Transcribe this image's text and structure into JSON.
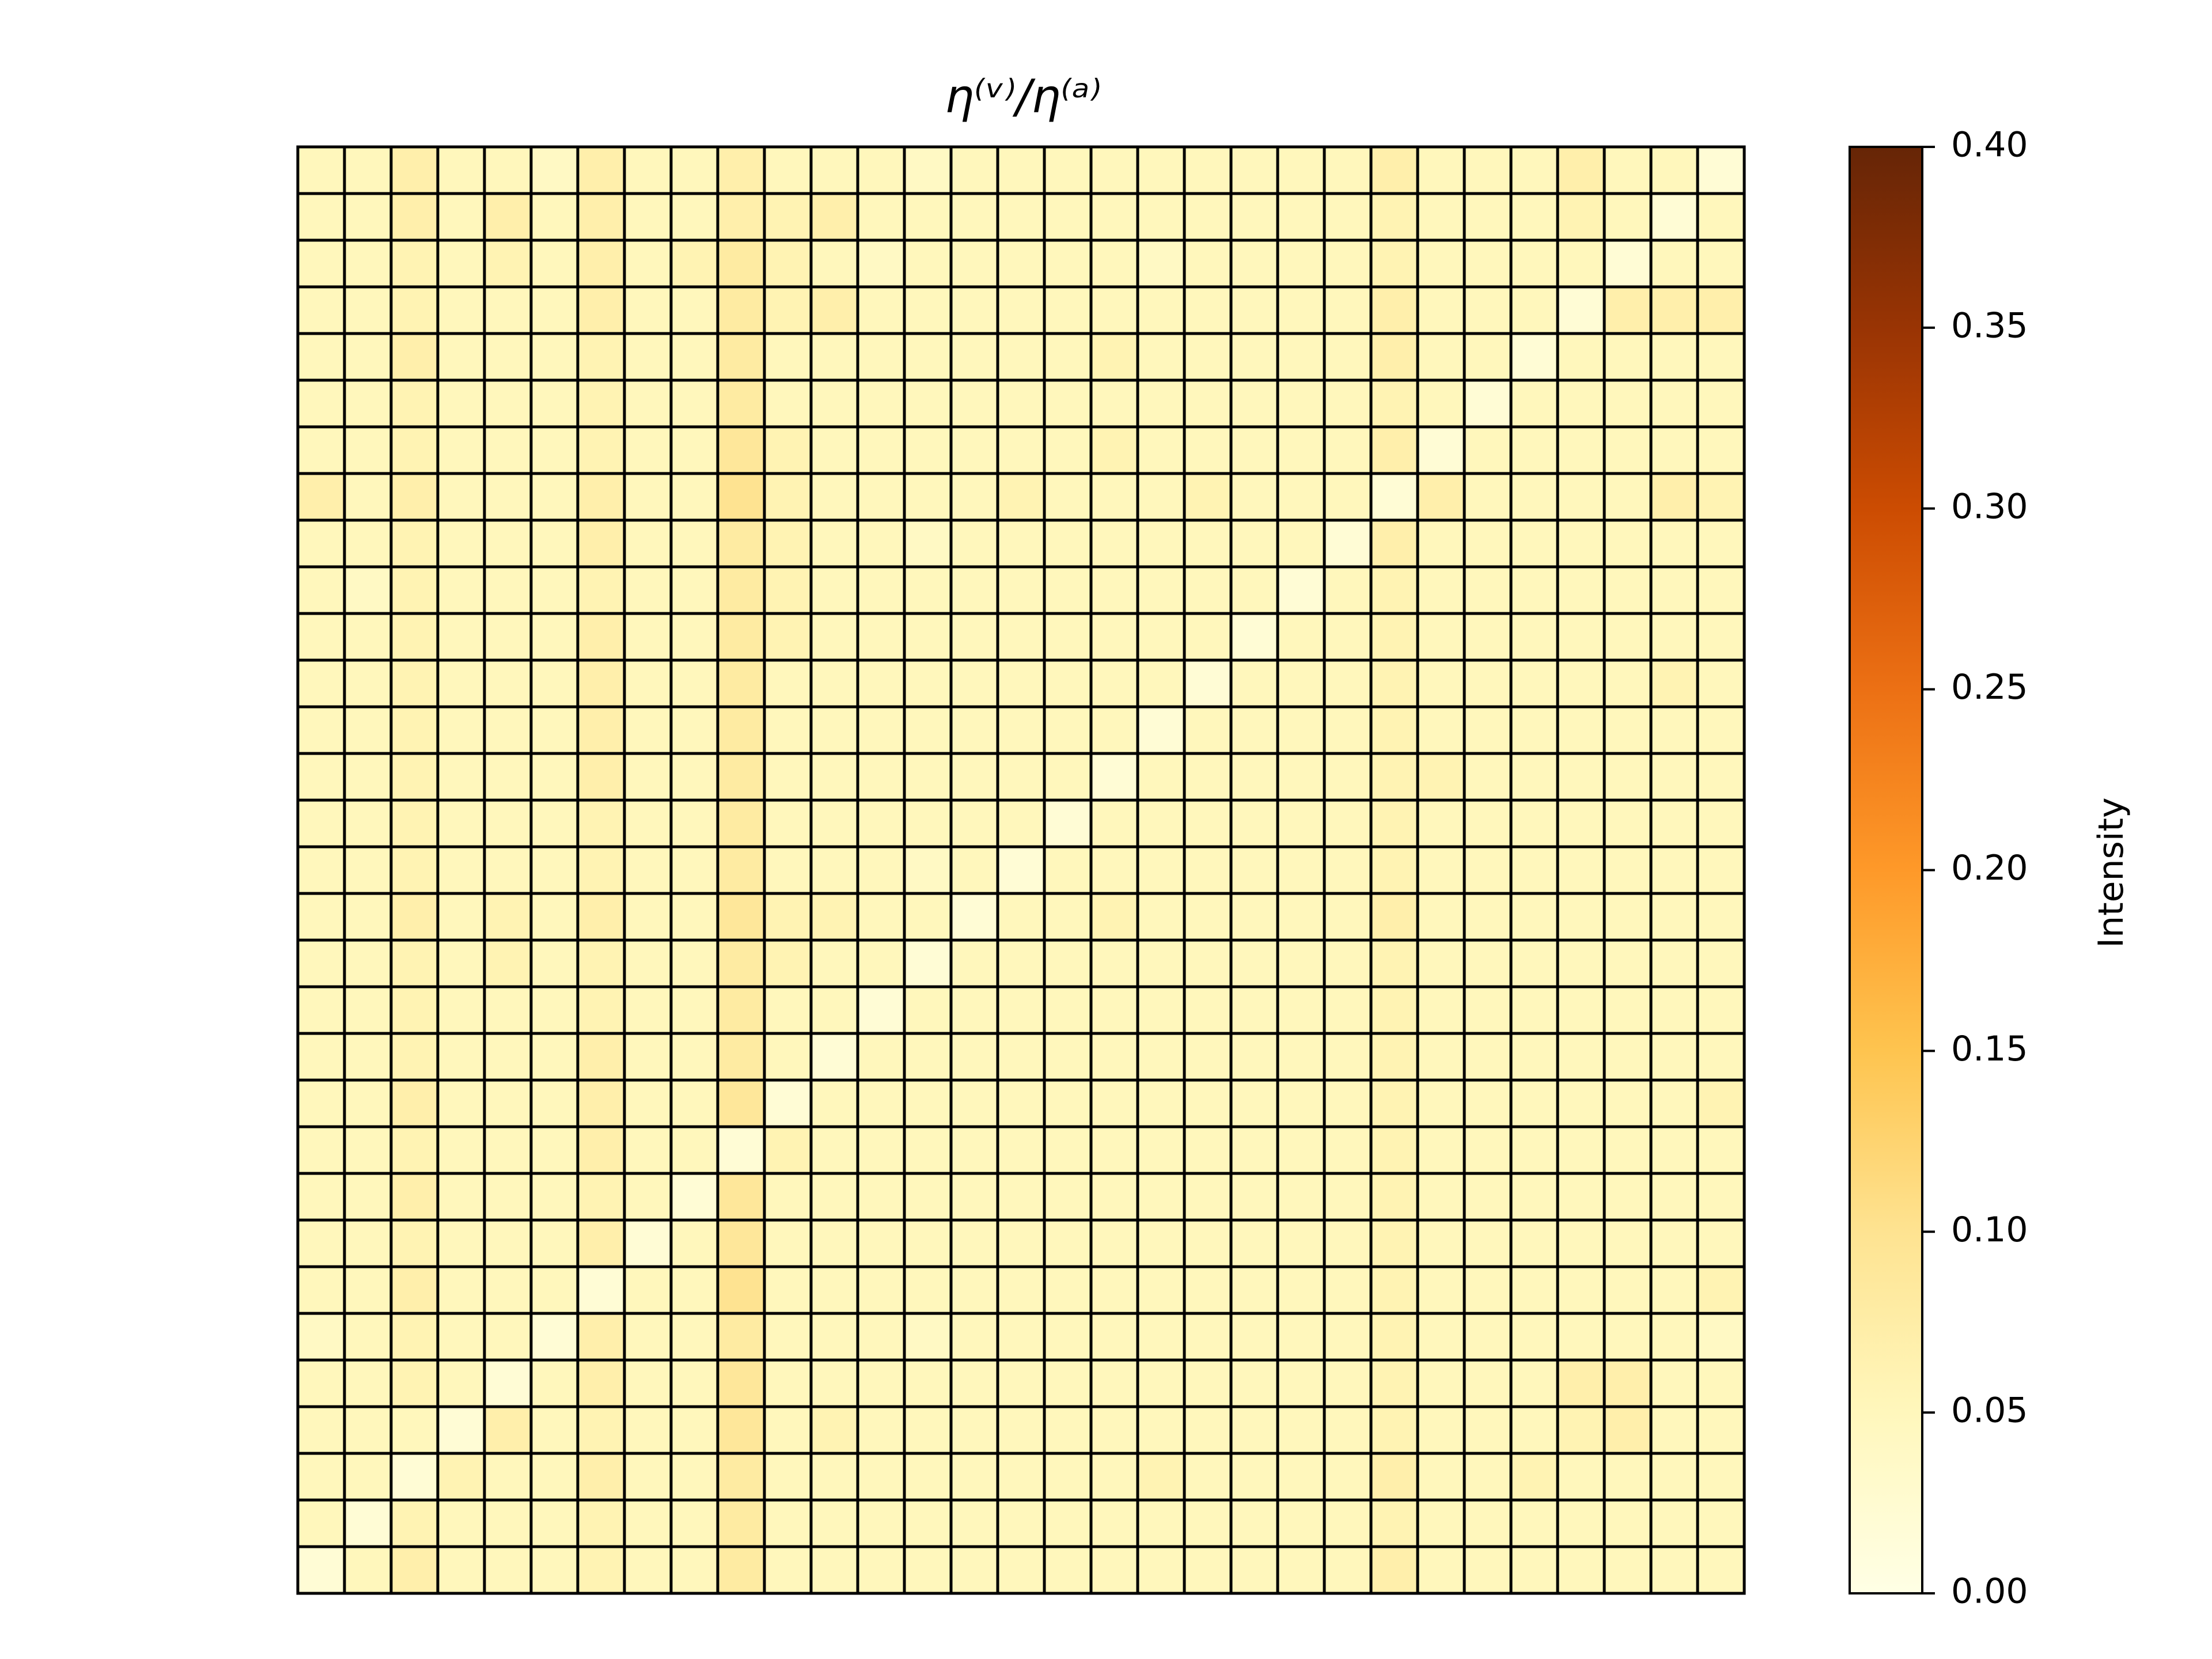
{
  "chart_data": {
    "type": "heatmap",
    "title": "η⁽ᵛ⁾/η⁽ᵃ⁾",
    "colorbar_label": "Intensity",
    "colormap": [
      "#ffffe5",
      "#fff7bc",
      "#fee391",
      "#fec44f",
      "#fe9929",
      "#ec7014",
      "#cc4c02",
      "#993404",
      "#662506"
    ],
    "clim": [
      0,
      0.4
    ],
    "cticks": [
      {
        "value": 0,
        "label": "0.00"
      },
      {
        "value": 0.05,
        "label": "0.05"
      },
      {
        "value": 0.1,
        "label": "0.10"
      },
      {
        "value": 0.15,
        "label": "0.15"
      },
      {
        "value": 0.2,
        "label": "0.20"
      },
      {
        "value": 0.25,
        "label": "0.25"
      },
      {
        "value": 0.3,
        "label": "0.30"
      },
      {
        "value": 0.35,
        "label": "0.35"
      },
      {
        "value": 0.4,
        "label": "0.40"
      }
    ],
    "values": [
      [
        0.05,
        0.05,
        0.07,
        0.05,
        0.05,
        0.04,
        0.07,
        0.05,
        0.05,
        0.07,
        0.05,
        0.05,
        0.05,
        0.04,
        0.05,
        0.05,
        0.05,
        0.05,
        0.05,
        0.05,
        0.05,
        0.05,
        0.05,
        0.07,
        0.05,
        0.05,
        0.05,
        0.07,
        0.05,
        0.05,
        0.02
      ],
      [
        0.05,
        0.05,
        0.07,
        0.05,
        0.07,
        0.05,
        0.07,
        0.05,
        0.05,
        0.07,
        0.06,
        0.07,
        0.05,
        0.05,
        0.05,
        0.05,
        0.05,
        0.05,
        0.05,
        0.05,
        0.05,
        0.05,
        0.05,
        0.06,
        0.05,
        0.05,
        0.05,
        0.06,
        0.05,
        0.02,
        0.05
      ],
      [
        0.05,
        0.05,
        0.06,
        0.05,
        0.06,
        0.05,
        0.07,
        0.05,
        0.06,
        0.08,
        0.06,
        0.05,
        0.04,
        0.05,
        0.05,
        0.05,
        0.05,
        0.05,
        0.04,
        0.05,
        0.05,
        0.05,
        0.05,
        0.06,
        0.05,
        0.05,
        0.05,
        0.05,
        0.02,
        0.05,
        0.05
      ],
      [
        0.05,
        0.05,
        0.06,
        0.05,
        0.05,
        0.05,
        0.07,
        0.05,
        0.05,
        0.08,
        0.06,
        0.07,
        0.05,
        0.05,
        0.05,
        0.05,
        0.05,
        0.05,
        0.05,
        0.05,
        0.05,
        0.05,
        0.05,
        0.07,
        0.05,
        0.05,
        0.05,
        0.02,
        0.07,
        0.07,
        0.07
      ],
      [
        0.05,
        0.05,
        0.07,
        0.05,
        0.05,
        0.05,
        0.06,
        0.05,
        0.05,
        0.08,
        0.05,
        0.05,
        0.05,
        0.05,
        0.05,
        0.05,
        0.05,
        0.06,
        0.05,
        0.05,
        0.05,
        0.05,
        0.05,
        0.07,
        0.05,
        0.05,
        0.02,
        0.05,
        0.05,
        0.05,
        0.05
      ],
      [
        0.05,
        0.05,
        0.06,
        0.05,
        0.05,
        0.05,
        0.06,
        0.05,
        0.05,
        0.08,
        0.05,
        0.05,
        0.05,
        0.05,
        0.05,
        0.05,
        0.05,
        0.05,
        0.05,
        0.05,
        0.05,
        0.05,
        0.05,
        0.06,
        0.05,
        0.02,
        0.05,
        0.05,
        0.05,
        0.05,
        0.05
      ],
      [
        0.05,
        0.05,
        0.06,
        0.05,
        0.05,
        0.05,
        0.06,
        0.05,
        0.05,
        0.09,
        0.06,
        0.05,
        0.05,
        0.05,
        0.05,
        0.05,
        0.05,
        0.06,
        0.05,
        0.05,
        0.05,
        0.05,
        0.05,
        0.07,
        0.02,
        0.05,
        0.05,
        0.05,
        0.05,
        0.05,
        0.05
      ],
      [
        0.07,
        0.05,
        0.07,
        0.05,
        0.05,
        0.05,
        0.07,
        0.05,
        0.05,
        0.1,
        0.06,
        0.05,
        0.05,
        0.05,
        0.05,
        0.06,
        0.05,
        0.05,
        0.05,
        0.06,
        0.05,
        0.05,
        0.05,
        0.02,
        0.07,
        0.05,
        0.05,
        0.05,
        0.05,
        0.07,
        0.06
      ],
      [
        0.05,
        0.05,
        0.06,
        0.05,
        0.05,
        0.05,
        0.07,
        0.05,
        0.05,
        0.08,
        0.06,
        0.05,
        0.05,
        0.04,
        0.05,
        0.05,
        0.05,
        0.05,
        0.05,
        0.05,
        0.05,
        0.05,
        0.02,
        0.07,
        0.05,
        0.05,
        0.05,
        0.05,
        0.05,
        0.05,
        0.05
      ],
      [
        0.05,
        0.04,
        0.06,
        0.05,
        0.05,
        0.05,
        0.06,
        0.05,
        0.05,
        0.08,
        0.06,
        0.05,
        0.05,
        0.05,
        0.05,
        0.05,
        0.05,
        0.05,
        0.05,
        0.05,
        0.05,
        0.02,
        0.05,
        0.06,
        0.05,
        0.05,
        0.05,
        0.05,
        0.05,
        0.05,
        0.05
      ],
      [
        0.05,
        0.05,
        0.06,
        0.05,
        0.05,
        0.05,
        0.07,
        0.05,
        0.05,
        0.08,
        0.06,
        0.05,
        0.05,
        0.05,
        0.05,
        0.05,
        0.05,
        0.05,
        0.05,
        0.05,
        0.02,
        0.05,
        0.05,
        0.06,
        0.05,
        0.05,
        0.05,
        0.05,
        0.05,
        0.05,
        0.05
      ],
      [
        0.05,
        0.05,
        0.06,
        0.05,
        0.05,
        0.05,
        0.07,
        0.05,
        0.05,
        0.08,
        0.05,
        0.05,
        0.05,
        0.05,
        0.05,
        0.05,
        0.05,
        0.05,
        0.05,
        0.02,
        0.05,
        0.05,
        0.05,
        0.06,
        0.05,
        0.05,
        0.05,
        0.05,
        0.05,
        0.06,
        0.05
      ],
      [
        0.05,
        0.05,
        0.06,
        0.05,
        0.05,
        0.05,
        0.07,
        0.05,
        0.05,
        0.08,
        0.05,
        0.05,
        0.05,
        0.05,
        0.05,
        0.05,
        0.05,
        0.05,
        0.02,
        0.05,
        0.05,
        0.05,
        0.05,
        0.06,
        0.05,
        0.05,
        0.05,
        0.05,
        0.05,
        0.05,
        0.05
      ],
      [
        0.05,
        0.05,
        0.06,
        0.05,
        0.05,
        0.05,
        0.07,
        0.05,
        0.05,
        0.08,
        0.05,
        0.05,
        0.05,
        0.05,
        0.05,
        0.05,
        0.05,
        0.02,
        0.05,
        0.05,
        0.05,
        0.05,
        0.05,
        0.06,
        0.06,
        0.05,
        0.05,
        0.05,
        0.05,
        0.05,
        0.05
      ],
      [
        0.05,
        0.05,
        0.06,
        0.05,
        0.05,
        0.05,
        0.06,
        0.05,
        0.05,
        0.08,
        0.05,
        0.05,
        0.05,
        0.05,
        0.05,
        0.05,
        0.02,
        0.05,
        0.05,
        0.05,
        0.05,
        0.05,
        0.05,
        0.06,
        0.05,
        0.05,
        0.05,
        0.05,
        0.05,
        0.05,
        0.05
      ],
      [
        0.05,
        0.05,
        0.06,
        0.05,
        0.05,
        0.05,
        0.06,
        0.05,
        0.05,
        0.08,
        0.05,
        0.05,
        0.05,
        0.04,
        0.05,
        0.02,
        0.05,
        0.05,
        0.05,
        0.05,
        0.05,
        0.05,
        0.05,
        0.06,
        0.05,
        0.05,
        0.05,
        0.05,
        0.05,
        0.05,
        0.05
      ],
      [
        0.05,
        0.05,
        0.07,
        0.05,
        0.06,
        0.05,
        0.07,
        0.05,
        0.05,
        0.09,
        0.06,
        0.06,
        0.05,
        0.05,
        0.02,
        0.05,
        0.05,
        0.06,
        0.05,
        0.05,
        0.05,
        0.05,
        0.05,
        0.07,
        0.05,
        0.05,
        0.05,
        0.05,
        0.05,
        0.05,
        0.05
      ],
      [
        0.05,
        0.05,
        0.06,
        0.05,
        0.06,
        0.05,
        0.06,
        0.05,
        0.05,
        0.08,
        0.06,
        0.05,
        0.05,
        0.02,
        0.05,
        0.05,
        0.05,
        0.05,
        0.05,
        0.05,
        0.05,
        0.05,
        0.05,
        0.06,
        0.05,
        0.05,
        0.05,
        0.05,
        0.05,
        0.05,
        0.05
      ],
      [
        0.05,
        0.05,
        0.06,
        0.05,
        0.05,
        0.05,
        0.06,
        0.05,
        0.05,
        0.08,
        0.05,
        0.05,
        0.02,
        0.05,
        0.05,
        0.05,
        0.05,
        0.05,
        0.05,
        0.05,
        0.05,
        0.05,
        0.05,
        0.06,
        0.05,
        0.05,
        0.05,
        0.05,
        0.05,
        0.05,
        0.05
      ],
      [
        0.05,
        0.05,
        0.06,
        0.05,
        0.05,
        0.05,
        0.07,
        0.05,
        0.05,
        0.08,
        0.05,
        0.02,
        0.05,
        0.05,
        0.05,
        0.05,
        0.05,
        0.05,
        0.05,
        0.05,
        0.05,
        0.05,
        0.05,
        0.06,
        0.05,
        0.05,
        0.05,
        0.05,
        0.05,
        0.05,
        0.05
      ],
      [
        0.05,
        0.05,
        0.07,
        0.05,
        0.05,
        0.05,
        0.07,
        0.05,
        0.05,
        0.09,
        0.02,
        0.05,
        0.05,
        0.05,
        0.05,
        0.05,
        0.05,
        0.05,
        0.05,
        0.05,
        0.05,
        0.05,
        0.05,
        0.06,
        0.05,
        0.05,
        0.05,
        0.05,
        0.05,
        0.05,
        0.06
      ],
      [
        0.05,
        0.05,
        0.06,
        0.05,
        0.05,
        0.05,
        0.07,
        0.05,
        0.05,
        0.02,
        0.06,
        0.05,
        0.05,
        0.05,
        0.05,
        0.05,
        0.05,
        0.05,
        0.05,
        0.05,
        0.05,
        0.05,
        0.05,
        0.06,
        0.05,
        0.05,
        0.05,
        0.05,
        0.05,
        0.05,
        0.05
      ],
      [
        0.05,
        0.05,
        0.07,
        0.05,
        0.05,
        0.05,
        0.06,
        0.05,
        0.02,
        0.09,
        0.05,
        0.05,
        0.05,
        0.05,
        0.05,
        0.05,
        0.05,
        0.05,
        0.05,
        0.05,
        0.05,
        0.05,
        0.05,
        0.06,
        0.05,
        0.05,
        0.05,
        0.05,
        0.05,
        0.05,
        0.05
      ],
      [
        0.05,
        0.05,
        0.06,
        0.05,
        0.05,
        0.05,
        0.07,
        0.02,
        0.05,
        0.09,
        0.05,
        0.05,
        0.05,
        0.05,
        0.05,
        0.05,
        0.05,
        0.05,
        0.05,
        0.05,
        0.05,
        0.05,
        0.05,
        0.06,
        0.05,
        0.05,
        0.05,
        0.05,
        0.05,
        0.05,
        0.05
      ],
      [
        0.05,
        0.05,
        0.07,
        0.05,
        0.05,
        0.05,
        0.02,
        0.05,
        0.05,
        0.1,
        0.05,
        0.05,
        0.05,
        0.05,
        0.05,
        0.05,
        0.05,
        0.05,
        0.05,
        0.05,
        0.05,
        0.05,
        0.05,
        0.06,
        0.05,
        0.05,
        0.05,
        0.05,
        0.05,
        0.05,
        0.06
      ],
      [
        0.04,
        0.05,
        0.06,
        0.05,
        0.05,
        0.02,
        0.07,
        0.05,
        0.05,
        0.08,
        0.05,
        0.05,
        0.05,
        0.04,
        0.05,
        0.05,
        0.05,
        0.05,
        0.05,
        0.05,
        0.05,
        0.05,
        0.05,
        0.06,
        0.05,
        0.05,
        0.05,
        0.05,
        0.05,
        0.05,
        0.04
      ],
      [
        0.05,
        0.05,
        0.06,
        0.05,
        0.02,
        0.05,
        0.07,
        0.05,
        0.05,
        0.09,
        0.05,
        0.05,
        0.05,
        0.05,
        0.05,
        0.05,
        0.05,
        0.05,
        0.05,
        0.05,
        0.05,
        0.05,
        0.05,
        0.06,
        0.05,
        0.05,
        0.05,
        0.07,
        0.07,
        0.05,
        0.05
      ],
      [
        0.05,
        0.05,
        0.05,
        0.02,
        0.07,
        0.05,
        0.06,
        0.05,
        0.05,
        0.09,
        0.05,
        0.06,
        0.05,
        0.05,
        0.05,
        0.05,
        0.05,
        0.05,
        0.05,
        0.05,
        0.05,
        0.05,
        0.05,
        0.06,
        0.05,
        0.05,
        0.05,
        0.06,
        0.07,
        0.05,
        0.05
      ],
      [
        0.05,
        0.05,
        0.02,
        0.06,
        0.05,
        0.05,
        0.07,
        0.05,
        0.05,
        0.08,
        0.05,
        0.05,
        0.05,
        0.05,
        0.05,
        0.05,
        0.05,
        0.05,
        0.06,
        0.05,
        0.05,
        0.05,
        0.05,
        0.07,
        0.05,
        0.05,
        0.06,
        0.05,
        0.05,
        0.05,
        0.05
      ],
      [
        0.05,
        0.02,
        0.06,
        0.05,
        0.05,
        0.05,
        0.06,
        0.05,
        0.05,
        0.08,
        0.05,
        0.05,
        0.05,
        0.05,
        0.05,
        0.05,
        0.05,
        0.05,
        0.05,
        0.05,
        0.05,
        0.05,
        0.05,
        0.06,
        0.05,
        0.05,
        0.05,
        0.05,
        0.05,
        0.05,
        0.05
      ],
      [
        0.02,
        0.05,
        0.07,
        0.05,
        0.05,
        0.05,
        0.06,
        0.05,
        0.05,
        0.08,
        0.05,
        0.05,
        0.05,
        0.05,
        0.05,
        0.05,
        0.05,
        0.05,
        0.05,
        0.05,
        0.05,
        0.05,
        0.05,
        0.07,
        0.05,
        0.05,
        0.05,
        0.05,
        0.05,
        0.05,
        0.05
      ]
    ]
  }
}
